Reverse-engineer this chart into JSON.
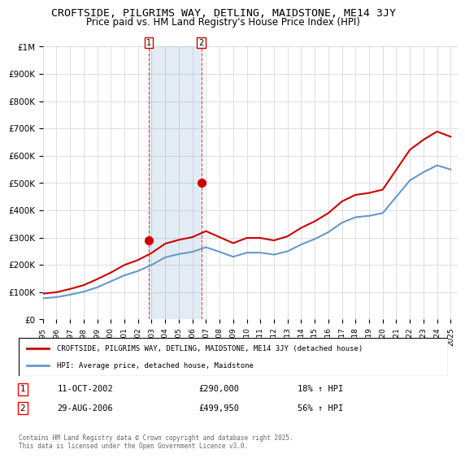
{
  "title": "CROFTSIDE, PILGRIMS WAY, DETLING, MAIDSTONE, ME14 3JY",
  "subtitle": "Price paid vs. HM Land Registry's House Price Index (HPI)",
  "hpi_label": "HPI: Average price, detached house, Maidstone",
  "property_label": "CROFTSIDE, PILGRIMS WAY, DETLING, MAIDSTONE, ME14 3JY (detached house)",
  "legend_footer": "Contains HM Land Registry data © Crown copyright and database right 2025.\nThis data is licensed under the Open Government Licence v3.0.",
  "transaction1_label": "1",
  "transaction1_date": "11-OCT-2002",
  "transaction1_price": "£290,000",
  "transaction1_hpi": "18% ↑ HPI",
  "transaction2_label": "2",
  "transaction2_date": "29-AUG-2006",
  "transaction2_price": "£499,950",
  "transaction2_hpi": "56% ↑ HPI",
  "property_color": "#cc0000",
  "hpi_color": "#6699cc",
  "background_color": "#ffffff",
  "grid_color": "#dddddd",
  "ylim": [
    0,
    1000000
  ],
  "yticks": [
    0,
    100000,
    200000,
    300000,
    400000,
    500000,
    600000,
    700000,
    800000,
    900000,
    1000000
  ],
  "ytick_labels": [
    "£0",
    "£100K",
    "£200K",
    "£300K",
    "£400K",
    "£500K",
    "£600K",
    "£700K",
    "£800K",
    "£900K",
    "£1M"
  ],
  "hpi_years": [
    1995,
    1996,
    1997,
    1998,
    1999,
    2000,
    2001,
    2002,
    2003,
    2004,
    2005,
    2006,
    2007,
    2008,
    2009,
    2010,
    2011,
    2012,
    2013,
    2014,
    2015,
    2016,
    2017,
    2018,
    2019,
    2020,
    2021,
    2022,
    2023,
    2024,
    2025
  ],
  "hpi_values": [
    78000,
    82000,
    91000,
    102000,
    118000,
    140000,
    162000,
    178000,
    200000,
    228000,
    240000,
    248000,
    265000,
    248000,
    230000,
    245000,
    245000,
    238000,
    250000,
    275000,
    295000,
    320000,
    355000,
    375000,
    380000,
    390000,
    450000,
    510000,
    540000,
    565000,
    550000
  ],
  "property_years": [
    1995,
    1996,
    1997,
    1998,
    1999,
    2000,
    2001,
    2002,
    2003,
    2004,
    2005,
    2006,
    2007,
    2008,
    2009,
    2010,
    2011,
    2012,
    2013,
    2014,
    2015,
    2016,
    2017,
    2018,
    2019,
    2020,
    2021,
    2022,
    2023,
    2024,
    2025
  ],
  "property_values": [
    95000,
    100000,
    112000,
    126000,
    148000,
    172000,
    200000,
    218000,
    244000,
    278000,
    292000,
    302000,
    324000,
    302000,
    280000,
    299000,
    299000,
    290000,
    305000,
    336000,
    360000,
    390000,
    433000,
    457000,
    464000,
    476000,
    549000,
    622000,
    659000,
    689000,
    670000
  ],
  "transaction1_year": 2002.78,
  "transaction1_value": 290000,
  "transaction2_year": 2006.65,
  "transaction2_value": 499950,
  "shade_x1_start": 2002.78,
  "shade_x1_end": 2006.65,
  "xtick_years": [
    1995,
    1996,
    1997,
    1998,
    1999,
    2000,
    2001,
    2002,
    2003,
    2004,
    2005,
    2006,
    2007,
    2008,
    2009,
    2010,
    2011,
    2012,
    2013,
    2014,
    2015,
    2016,
    2017,
    2018,
    2019,
    2020,
    2021,
    2022,
    2023,
    2024,
    2025
  ]
}
